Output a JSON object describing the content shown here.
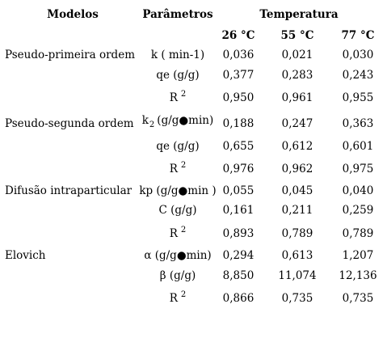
{
  "headers": {
    "modelos": "Modelos",
    "parametros": "Parâmetros",
    "temperatura": "Temperatura",
    "temps": [
      "26 °C",
      "55 °C",
      "77 °C"
    ]
  },
  "groups": [
    {
      "model": "Pseudo-primeira ordem",
      "rows": [
        {
          "param": "k ( min-1)",
          "values": [
            "0,036",
            "0,021",
            "0,030"
          ]
        },
        {
          "param": "qe (g/g)",
          "values": [
            "0,377",
            "0,283",
            "0,243"
          ]
        },
        {
          "param_main": "R",
          "param_sup": "2",
          "values": [
            "0,950",
            "0,961",
            "0,955"
          ]
        }
      ]
    },
    {
      "model": "Pseudo-segunda ordem",
      "rows": [
        {
          "param_main": "k",
          "param_sub": "2",
          "param_rest": "(g/g●min)",
          "values": [
            "0,188",
            "0,247",
            "0,363"
          ]
        },
        {
          "param": "qe (g/g)",
          "values": [
            "0,655",
            "0,612",
            "0,601"
          ]
        },
        {
          "param_main": "R",
          "param_sup": "2",
          "values": [
            "0,976",
            "0,962",
            "0,975"
          ]
        }
      ]
    },
    {
      "model": "Difusão intraparticular",
      "rows": [
        {
          "param": "kp (g/g●min )",
          "values": [
            "0,055",
            "0,045",
            "0,040"
          ]
        },
        {
          "param": "C (g/g)",
          "values": [
            "0,161",
            "0,211",
            "0,259"
          ]
        },
        {
          "param_main": "R",
          "param_sup": "2",
          "values": [
            "0,893",
            "0,789",
            "0,789"
          ]
        }
      ]
    },
    {
      "model": "Elovich",
      "rows": [
        {
          "param": "α (g/g●min)",
          "values": [
            "0,294",
            "0,613",
            "1,207"
          ]
        },
        {
          "param": "β (g/g)",
          "values": [
            "8,850",
            "11,074",
            "12,136"
          ]
        },
        {
          "param_main": "R",
          "param_sup": "2",
          "values": [
            "0,866",
            "0,735",
            "0,735"
          ]
        }
      ]
    }
  ]
}
